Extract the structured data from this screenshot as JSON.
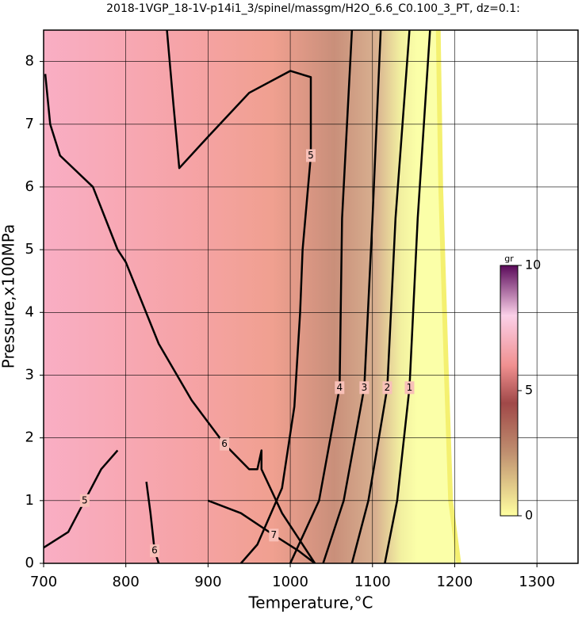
{
  "chart_data": {
    "type": "contour",
    "title": "2018-1VGP_18-1V-p14i1_3/spinel/massgm/H2O_6.6_C0.100_3_PT, dz=0.1:",
    "x_label": "Temperature,°C",
    "y_label": "Pressure,x100MPa",
    "xlim": [
      700,
      1350
    ],
    "ylim": [
      0,
      8.5
    ],
    "xticks": [
      700,
      800,
      900,
      1000,
      1100,
      1200,
      1300
    ],
    "yticks": [
      0,
      1,
      2,
      3,
      4,
      5,
      6,
      7,
      8
    ],
    "grid": true,
    "field_edge": {
      "x": [
        1180,
        1183,
        1190,
        1195,
        1205
      ],
      "y": [
        8.5,
        6,
        3,
        1,
        0
      ]
    },
    "contours": [
      {
        "level": 1,
        "x": [
          1170,
          1155,
          1145,
          1130,
          1115
        ],
        "y": [
          8.5,
          5.5,
          2.8,
          1,
          0
        ]
      },
      {
        "level": 2,
        "x": [
          1145,
          1128,
          1118,
          1095,
          1075
        ],
        "y": [
          8.5,
          5.5,
          2.8,
          1,
          0
        ]
      },
      {
        "level": 3,
        "x": [
          1110,
          1100,
          1090,
          1065,
          1040
        ],
        "y": [
          8.5,
          5.5,
          2.8,
          1,
          0
        ]
      },
      {
        "level": 4,
        "x": [
          1075,
          1063,
          1060,
          1035,
          1000
        ],
        "y": [
          8.5,
          5.5,
          2.8,
          1,
          0
        ]
      },
      {
        "level": 5,
        "x": [
          850,
          858,
          865,
          900,
          950,
          1000,
          1025,
          1025,
          1015,
          1012,
          1005,
          990,
          960,
          940
        ],
        "y": [
          8.5,
          7.3,
          6.3,
          6.8,
          7.5,
          7.85,
          7.75,
          6.5,
          5,
          4,
          2.5,
          1.2,
          0.3,
          0
        ]
      },
      {
        "level": 6,
        "x": [
          702,
          708,
          720,
          760,
          790,
          800,
          840,
          880,
          920,
          950,
          960,
          965,
          965,
          990,
          1010,
          1030
        ],
        "y": [
          7.8,
          7.0,
          6.5,
          6,
          5,
          4.8,
          3.5,
          2.6,
          1.9,
          1.5,
          1.5,
          1.8,
          1.5,
          0.8,
          0.4,
          0
        ]
      },
      {
        "level": 5,
        "x": [
          700,
          730,
          750,
          770,
          790
        ],
        "y": [
          0.25,
          0.5,
          1.0,
          1.5,
          1.8
        ]
      },
      {
        "level": 6,
        "x": [
          825,
          830,
          835,
          840
        ],
        "y": [
          1.3,
          0.8,
          0.2,
          0
        ]
      },
      {
        "level": 7,
        "x": [
          900,
          940,
          980,
          1010,
          1030
        ],
        "y": [
          1.0,
          0.8,
          0.45,
          0.2,
          0
        ]
      }
    ],
    "colorbar": {
      "label": "gr",
      "lim": [
        0,
        10
      ],
      "ticks": [
        0,
        5,
        10
      ]
    }
  }
}
